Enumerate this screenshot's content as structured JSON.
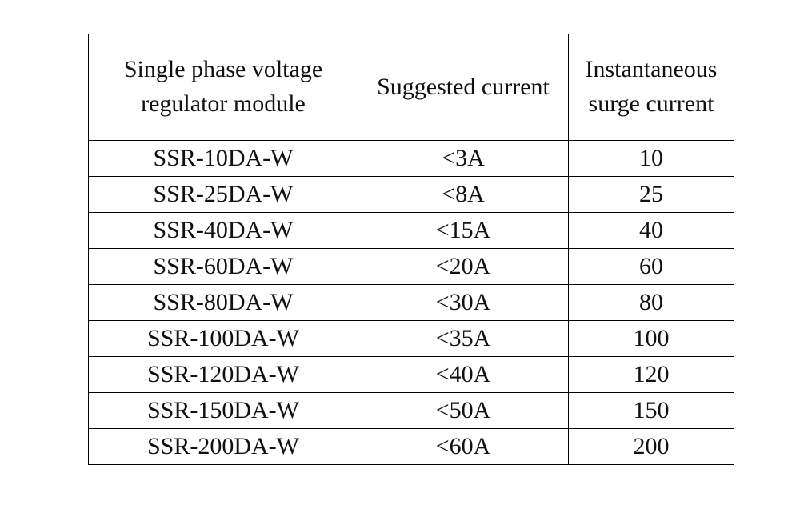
{
  "table": {
    "header": [
      [
        "Single phase voltage",
        "regulator module"
      ],
      [
        "Suggested current"
      ],
      [
        "Instantaneous",
        "surge current"
      ]
    ],
    "rows": [
      [
        "SSR-10DA-W",
        "<3A",
        "10"
      ],
      [
        "SSR-25DA-W",
        "<8A",
        "25"
      ],
      [
        "SSR-40DA-W",
        "<15A",
        "40"
      ],
      [
        "SSR-60DA-W",
        "<20A",
        "60"
      ],
      [
        "SSR-80DA-W",
        "<30A",
        "80"
      ],
      [
        "SSR-100DA-W",
        "<35A",
        "100"
      ],
      [
        "SSR-120DA-W",
        "<40A",
        "120"
      ],
      [
        "SSR-150DA-W",
        "<50A",
        "150"
      ],
      [
        "SSR-200DA-W",
        "<60A",
        "200"
      ]
    ]
  }
}
